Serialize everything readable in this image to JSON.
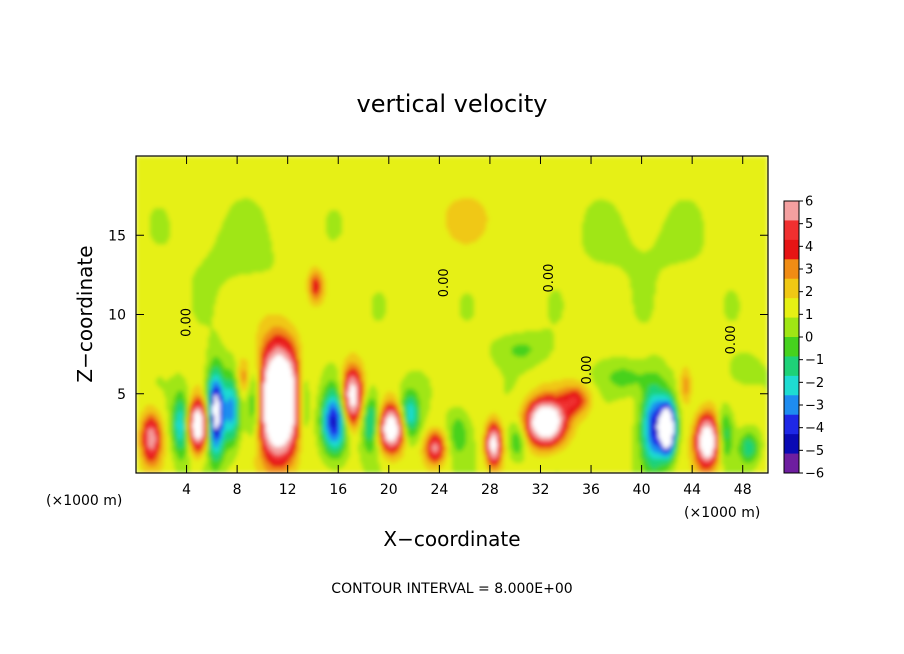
{
  "chart_data": {
    "type": "heatmap",
    "title": "vertical velocity",
    "xlabel": "X−coordinate",
    "ylabel": "Z−coordinate",
    "x_unit": "(×1000 m)",
    "y_unit": "(×1000 m)",
    "footnote": "CONTOUR INTERVAL = 8.000E+00",
    "xlim": [
      0,
      50
    ],
    "ylim": [
      0,
      20
    ],
    "x_ticks": [
      4,
      8,
      12,
      16,
      20,
      24,
      28,
      32,
      36,
      40,
      44,
      48
    ],
    "y_ticks": [
      5,
      10,
      15
    ],
    "colorbar": {
      "ticks": [
        6,
        5,
        4,
        3,
        2,
        1,
        0,
        -1,
        -2,
        -3,
        -4,
        -5,
        -6
      ],
      "colors": [
        "#f4a0a0",
        "#f03030",
        "#e61414",
        "#f08c14",
        "#f0c814",
        "#e6f014",
        "#a0e614",
        "#46d21e",
        "#1ed278",
        "#1edcd2",
        "#1e8cf0",
        "#1e28e6",
        "#0a0ab4",
        "#6e1ea0"
      ]
    },
    "background_value": 0.3,
    "cells": [
      {
        "x": 1.2,
        "z": 2.2,
        "sx": 0.8,
        "sz": 1.6,
        "v": 5.5
      },
      {
        "x": 3.6,
        "z": 3.0,
        "sx": 0.7,
        "sz": 2.0,
        "v": -4.5
      },
      {
        "x": 4.9,
        "z": 3.0,
        "sx": 0.8,
        "sz": 1.5,
        "v": 9.0
      },
      {
        "x": 6.3,
        "z": 3.8,
        "sx": 0.7,
        "sz": 2.6,
        "v": -8.5
      },
      {
        "x": 7.6,
        "z": 4.0,
        "sx": 0.6,
        "sz": 2.2,
        "v": -4.5
      },
      {
        "x": 8.5,
        "z": 6.0,
        "sx": 0.6,
        "sz": 1.2,
        "v": 2.5
      },
      {
        "x": 11.3,
        "z": 4.5,
        "sx": 1.6,
        "sz": 3.4,
        "v": 13.0
      },
      {
        "x": 9.4,
        "z": 4.5,
        "sx": 0.7,
        "sz": 2.6,
        "v": -4.0
      },
      {
        "x": 13.2,
        "z": 4.5,
        "sx": 0.6,
        "sz": 2.6,
        "v": -3.5
      },
      {
        "x": 14.2,
        "z": 11.8,
        "sx": 0.6,
        "sz": 1.0,
        "v": 3.5
      },
      {
        "x": 15.7,
        "z": 3.2,
        "sx": 1.0,
        "sz": 2.0,
        "v": -6.5
      },
      {
        "x": 17.1,
        "z": 4.8,
        "sx": 0.8,
        "sz": 1.8,
        "v": 8.0
      },
      {
        "x": 18.6,
        "z": 3.2,
        "sx": 0.8,
        "sz": 1.8,
        "v": -4.0
      },
      {
        "x": 20.2,
        "z": 2.8,
        "sx": 1.0,
        "sz": 1.4,
        "v": 9.0
      },
      {
        "x": 21.6,
        "z": 3.6,
        "sx": 0.8,
        "sz": 1.5,
        "v": -4.5
      },
      {
        "x": 23.7,
        "z": 1.6,
        "sx": 0.8,
        "sz": 1.0,
        "v": 5.0
      },
      {
        "x": 25.5,
        "z": 2.5,
        "sx": 0.9,
        "sz": 1.5,
        "v": -2.0
      },
      {
        "x": 28.3,
        "z": 1.8,
        "sx": 0.6,
        "sz": 1.3,
        "v": 7.5
      },
      {
        "x": 30.2,
        "z": 2.0,
        "sx": 0.7,
        "sz": 1.2,
        "v": -2.5
      },
      {
        "x": 32.4,
        "z": 3.2,
        "sx": 1.5,
        "sz": 1.4,
        "v": 10.0
      },
      {
        "x": 34.8,
        "z": 4.6,
        "sx": 1.2,
        "sz": 1.0,
        "v": 3.5
      },
      {
        "x": 30.5,
        "z": 7.8,
        "sx": 2.0,
        "sz": 1.0,
        "v": -1.5
      },
      {
        "x": 38.8,
        "z": 6.0,
        "sx": 1.8,
        "sz": 1.0,
        "v": -1.8
      },
      {
        "x": 41.0,
        "z": 3.0,
        "sx": 1.0,
        "sz": 2.6,
        "v": -6.0
      },
      {
        "x": 42.1,
        "z": 2.8,
        "sx": 0.6,
        "sz": 1.6,
        "v": -10.0
      },
      {
        "x": 43.5,
        "z": 5.5,
        "sx": 0.5,
        "sz": 1.2,
        "v": 2.5
      },
      {
        "x": 45.2,
        "z": 2.0,
        "sx": 0.9,
        "sz": 1.6,
        "v": 9.0
      },
      {
        "x": 46.6,
        "z": 2.5,
        "sx": 0.6,
        "sz": 1.6,
        "v": -3.0
      },
      {
        "x": 48.5,
        "z": 1.6,
        "sx": 0.8,
        "sz": 1.0,
        "v": -3.0
      },
      {
        "x": 48.0,
        "z": 6.5,
        "sx": 1.2,
        "sz": 1.0,
        "v": -1.2
      },
      {
        "x": 8.0,
        "z": 14.0,
        "sx": 4.0,
        "sz": 2.5,
        "v": -0.6
      },
      {
        "x": 26.0,
        "z": 16.0,
        "sx": 4.0,
        "sz": 2.0,
        "v": 0.8
      },
      {
        "x": 40.0,
        "z": 14.5,
        "sx": 5.0,
        "sz": 2.5,
        "v": -0.5
      }
    ],
    "contour_labels": [
      {
        "text": "0.00",
        "x": 4.3,
        "z": 9.5
      },
      {
        "text": "0.00",
        "x": 24.7,
        "z": 12.0
      },
      {
        "text": "0.00",
        "x": 33.0,
        "z": 12.3
      },
      {
        "text": "0.00",
        "x": 36.0,
        "z": 6.5
      },
      {
        "text": "0.00",
        "x": 47.4,
        "z": 8.4
      }
    ]
  }
}
